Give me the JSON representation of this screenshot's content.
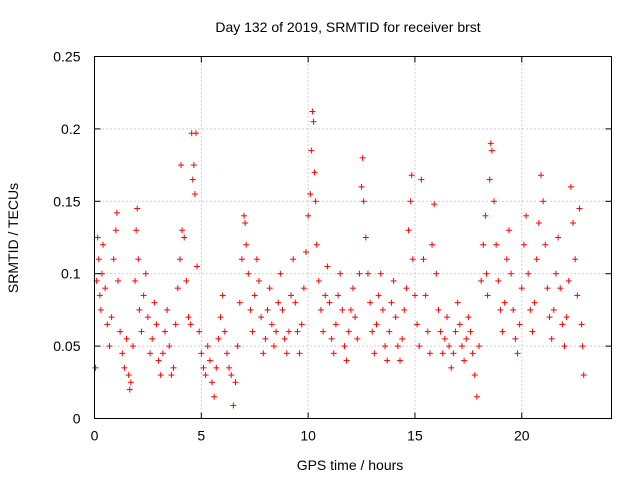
{
  "chart_data": {
    "type": "scatter",
    "title": "Day 132 of 2019, SRMTID for receiver brst",
    "xlabel": "GPS time / hours",
    "ylabel": "SRMTID / TECUs",
    "xlim": [
      0,
      24.2
    ],
    "ylim": [
      0,
      0.25
    ],
    "xticks": [
      0,
      5,
      10,
      15,
      20
    ],
    "yticks": [
      0,
      0.05,
      0.1,
      0.15,
      0.2,
      0.25
    ],
    "xtick_labels": [
      "0",
      "5",
      "10",
      "15",
      "20"
    ],
    "ytick_labels": [
      "0",
      "0.05",
      "0.1",
      "0.15",
      "0.2",
      "0.25"
    ],
    "grid": true,
    "marker": "+",
    "marker_color": "#ff0000",
    "series": [
      {
        "name": "brst",
        "points": [
          [
            0.05,
            0.035
          ],
          [
            0.1,
            0.095
          ],
          [
            0.15,
            0.125
          ],
          [
            0.2,
            0.11
          ],
          [
            0.25,
            0.085
          ],
          [
            0.3,
            0.075
          ],
          [
            0.35,
            0.1
          ],
          [
            0.4,
            0.12
          ],
          [
            0.5,
            0.09
          ],
          [
            0.6,
            0.065
          ],
          [
            0.7,
            0.05
          ],
          [
            0.8,
            0.07
          ],
          [
            0.9,
            0.11
          ],
          [
            1.0,
            0.13
          ],
          [
            1.05,
            0.142
          ],
          [
            1.1,
            0.095
          ],
          [
            1.2,
            0.06
          ],
          [
            1.3,
            0.045
          ],
          [
            1.4,
            0.035
          ],
          [
            1.5,
            0.055
          ],
          [
            1.6,
            0.03
          ],
          [
            1.65,
            0.02
          ],
          [
            1.7,
            0.025
          ],
          [
            1.8,
            0.05
          ],
          [
            1.9,
            0.095
          ],
          [
            1.95,
            0.13
          ],
          [
            2.0,
            0.145
          ],
          [
            2.05,
            0.11
          ],
          [
            2.1,
            0.075
          ],
          [
            2.2,
            0.06
          ],
          [
            2.3,
            0.085
          ],
          [
            2.4,
            0.1
          ],
          [
            2.5,
            0.07
          ],
          [
            2.6,
            0.045
          ],
          [
            2.7,
            0.055
          ],
          [
            2.8,
            0.08
          ],
          [
            2.9,
            0.065
          ],
          [
            3.0,
            0.04
          ],
          [
            3.1,
            0.03
          ],
          [
            3.2,
            0.045
          ],
          [
            3.3,
            0.06
          ],
          [
            3.4,
            0.075
          ],
          [
            3.5,
            0.05
          ],
          [
            3.6,
            0.03
          ],
          [
            3.7,
            0.035
          ],
          [
            3.8,
            0.065
          ],
          [
            3.9,
            0.09
          ],
          [
            4.0,
            0.11
          ],
          [
            4.05,
            0.175
          ],
          [
            4.1,
            0.13
          ],
          [
            4.2,
            0.125
          ],
          [
            4.3,
            0.095
          ],
          [
            4.4,
            0.07
          ],
          [
            4.5,
            0.065
          ],
          [
            4.55,
            0.197
          ],
          [
            4.6,
            0.165
          ],
          [
            4.65,
            0.175
          ],
          [
            4.7,
            0.155
          ],
          [
            4.75,
            0.197
          ],
          [
            4.8,
            0.105
          ],
          [
            4.9,
            0.06
          ],
          [
            5.0,
            0.045
          ],
          [
            5.1,
            0.035
          ],
          [
            5.2,
            0.03
          ],
          [
            5.3,
            0.05
          ],
          [
            5.4,
            0.04
          ],
          [
            5.5,
            0.025
          ],
          [
            5.6,
            0.015
          ],
          [
            5.7,
            0.035
          ],
          [
            5.8,
            0.055
          ],
          [
            5.9,
            0.07
          ],
          [
            6.0,
            0.085
          ],
          [
            6.1,
            0.06
          ],
          [
            6.2,
            0.045
          ],
          [
            6.3,
            0.035
          ],
          [
            6.4,
            0.03
          ],
          [
            6.5,
            0.009
          ],
          [
            6.6,
            0.025
          ],
          [
            6.7,
            0.05
          ],
          [
            6.8,
            0.08
          ],
          [
            6.9,
            0.11
          ],
          [
            7.0,
            0.14
          ],
          [
            7.05,
            0.135
          ],
          [
            7.1,
            0.12
          ],
          [
            7.2,
            0.1
          ],
          [
            7.3,
            0.075
          ],
          [
            7.4,
            0.06
          ],
          [
            7.5,
            0.085
          ],
          [
            7.6,
            0.11
          ],
          [
            7.7,
            0.095
          ],
          [
            7.8,
            0.07
          ],
          [
            7.9,
            0.045
          ],
          [
            8.0,
            0.055
          ],
          [
            8.1,
            0.075
          ],
          [
            8.2,
            0.09
          ],
          [
            8.3,
            0.065
          ],
          [
            8.4,
            0.05
          ],
          [
            8.5,
            0.06
          ],
          [
            8.6,
            0.08
          ],
          [
            8.7,
            0.1
          ],
          [
            8.8,
            0.075
          ],
          [
            8.9,
            0.055
          ],
          [
            9.0,
            0.045
          ],
          [
            9.1,
            0.06
          ],
          [
            9.2,
            0.085
          ],
          [
            9.3,
            0.11
          ],
          [
            9.4,
            0.08
          ],
          [
            9.5,
            0.06
          ],
          [
            9.6,
            0.045
          ],
          [
            9.7,
            0.065
          ],
          [
            9.8,
            0.09
          ],
          [
            9.9,
            0.115
          ],
          [
            10.0,
            0.14
          ],
          [
            10.1,
            0.155
          ],
          [
            10.15,
            0.185
          ],
          [
            10.2,
            0.212
          ],
          [
            10.25,
            0.205
          ],
          [
            10.3,
            0.17
          ],
          [
            10.35,
            0.15
          ],
          [
            10.4,
            0.12
          ],
          [
            10.5,
            0.095
          ],
          [
            10.6,
            0.075
          ],
          [
            10.7,
            0.06
          ],
          [
            10.8,
            0.085
          ],
          [
            10.9,
            0.105
          ],
          [
            11.0,
            0.08
          ],
          [
            11.1,
            0.055
          ],
          [
            11.2,
            0.045
          ],
          [
            11.3,
            0.065
          ],
          [
            11.4,
            0.085
          ],
          [
            11.5,
            0.1
          ],
          [
            11.6,
            0.075
          ],
          [
            11.7,
            0.05
          ],
          [
            11.8,
            0.04
          ],
          [
            11.9,
            0.06
          ],
          [
            12.0,
            0.075
          ],
          [
            12.1,
            0.09
          ],
          [
            12.2,
            0.07
          ],
          [
            12.3,
            0.055
          ],
          [
            12.4,
            0.1
          ],
          [
            12.5,
            0.16
          ],
          [
            12.55,
            0.18
          ],
          [
            12.6,
            0.15
          ],
          [
            12.7,
            0.125
          ],
          [
            12.8,
            0.1
          ],
          [
            12.9,
            0.08
          ],
          [
            13.0,
            0.06
          ],
          [
            13.1,
            0.045
          ],
          [
            13.2,
            0.065
          ],
          [
            13.3,
            0.085
          ],
          [
            13.4,
            0.1
          ],
          [
            13.5,
            0.075
          ],
          [
            13.6,
            0.05
          ],
          [
            13.7,
            0.04
          ],
          [
            13.8,
            0.06
          ],
          [
            13.9,
            0.08
          ],
          [
            14.0,
            0.095
          ],
          [
            14.1,
            0.07
          ],
          [
            14.2,
            0.05
          ],
          [
            14.3,
            0.04
          ],
          [
            14.4,
            0.055
          ],
          [
            14.5,
            0.075
          ],
          [
            14.6,
            0.09
          ],
          [
            14.7,
            0.13
          ],
          [
            14.8,
            0.15
          ],
          [
            14.85,
            0.168
          ],
          [
            14.9,
            0.11
          ],
          [
            15.0,
            0.085
          ],
          [
            15.1,
            0.065
          ],
          [
            15.2,
            0.05
          ],
          [
            15.3,
            0.165
          ],
          [
            15.4,
            0.11
          ],
          [
            15.5,
            0.085
          ],
          [
            15.6,
            0.06
          ],
          [
            15.7,
            0.045
          ],
          [
            15.8,
            0.12
          ],
          [
            15.9,
            0.148
          ],
          [
            16.0,
            0.1
          ],
          [
            16.1,
            0.075
          ],
          [
            16.2,
            0.06
          ],
          [
            16.3,
            0.045
          ],
          [
            16.4,
            0.055
          ],
          [
            16.5,
            0.07
          ],
          [
            16.6,
            0.05
          ],
          [
            16.7,
            0.035
          ],
          [
            16.8,
            0.045
          ],
          [
            16.9,
            0.06
          ],
          [
            17.0,
            0.08
          ],
          [
            17.1,
            0.065
          ],
          [
            17.2,
            0.05
          ],
          [
            17.3,
            0.04
          ],
          [
            17.4,
            0.055
          ],
          [
            17.5,
            0.07
          ],
          [
            17.6,
            0.06
          ],
          [
            17.7,
            0.045
          ],
          [
            17.8,
            0.03
          ],
          [
            17.9,
            0.015
          ],
          [
            18.0,
            0.05
          ],
          [
            18.1,
            0.095
          ],
          [
            18.2,
            0.12
          ],
          [
            18.3,
            0.14
          ],
          [
            18.35,
            0.1
          ],
          [
            18.4,
            0.085
          ],
          [
            18.5,
            0.165
          ],
          [
            18.55,
            0.19
          ],
          [
            18.6,
            0.185
          ],
          [
            18.7,
            0.15
          ],
          [
            18.8,
            0.12
          ],
          [
            18.9,
            0.095
          ],
          [
            19.0,
            0.075
          ],
          [
            19.1,
            0.06
          ],
          [
            19.2,
            0.08
          ],
          [
            19.3,
            0.11
          ],
          [
            19.4,
            0.13
          ],
          [
            19.5,
            0.1
          ],
          [
            19.6,
            0.075
          ],
          [
            19.7,
            0.055
          ],
          [
            19.8,
            0.045
          ],
          [
            19.9,
            0.065
          ],
          [
            20.0,
            0.09
          ],
          [
            20.1,
            0.12
          ],
          [
            20.2,
            0.14
          ],
          [
            20.3,
            0.1
          ],
          [
            20.4,
            0.075
          ],
          [
            20.5,
            0.06
          ],
          [
            20.6,
            0.08
          ],
          [
            20.7,
            0.11
          ],
          [
            20.8,
            0.135
          ],
          [
            20.9,
            0.168
          ],
          [
            21.0,
            0.15
          ],
          [
            21.1,
            0.12
          ],
          [
            21.2,
            0.09
          ],
          [
            21.3,
            0.07
          ],
          [
            21.4,
            0.055
          ],
          [
            21.5,
            0.075
          ],
          [
            21.6,
            0.1
          ],
          [
            21.7,
            0.125
          ],
          [
            21.8,
            0.09
          ],
          [
            21.9,
            0.065
          ],
          [
            22.0,
            0.05
          ],
          [
            22.1,
            0.07
          ],
          [
            22.2,
            0.095
          ],
          [
            22.3,
            0.16
          ],
          [
            22.4,
            0.135
          ],
          [
            22.5,
            0.11
          ],
          [
            22.6,
            0.085
          ],
          [
            22.7,
            0.145
          ],
          [
            22.8,
            0.065
          ],
          [
            22.85,
            0.05
          ],
          [
            22.9,
            0.03
          ]
        ]
      }
    ]
  }
}
